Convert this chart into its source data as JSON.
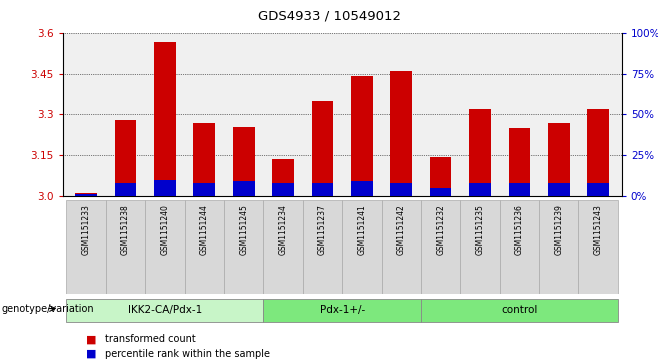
{
  "title": "GDS4933 / 10549012",
  "samples": [
    "GSM1151233",
    "GSM1151238",
    "GSM1151240",
    "GSM1151244",
    "GSM1151245",
    "GSM1151234",
    "GSM1151237",
    "GSM1151241",
    "GSM1151242",
    "GSM1151232",
    "GSM1151235",
    "GSM1151236",
    "GSM1151239",
    "GSM1151243"
  ],
  "transformed_count": [
    3.01,
    3.28,
    3.565,
    3.27,
    3.255,
    3.135,
    3.35,
    3.44,
    3.46,
    3.145,
    3.32,
    3.25,
    3.27,
    3.32
  ],
  "percentile_rank": [
    1,
    8,
    10,
    8,
    9,
    8,
    8,
    9,
    8,
    5,
    8,
    8,
    8,
    8
  ],
  "ymin": 3.0,
  "ymax": 3.6,
  "yticks_left": [
    3.0,
    3.15,
    3.3,
    3.45,
    3.6
  ],
  "yticks_right": [
    0,
    25,
    50,
    75,
    100
  ],
  "groups": [
    {
      "label": "IKK2-CA/Pdx-1",
      "start": 0,
      "end": 5
    },
    {
      "label": "Pdx-1+/-",
      "start": 5,
      "end": 9
    },
    {
      "label": "control",
      "start": 9,
      "end": 14
    }
  ],
  "group_colors": [
    "#c8f5c8",
    "#7de87d",
    "#7de87d"
  ],
  "bar_color_red": "#cc0000",
  "bar_color_blue": "#0000cc",
  "bar_width": 0.55,
  "background_color": "#ffffff",
  "ticklabel_bg": "#d8d8d8",
  "tick_label_color_left": "#cc0000",
  "tick_label_color_right": "#0000cc",
  "percentile_scale_max": 100,
  "legend_red": "transformed count",
  "legend_blue": "percentile rank within the sample",
  "group_prefix": "genotype/variation"
}
